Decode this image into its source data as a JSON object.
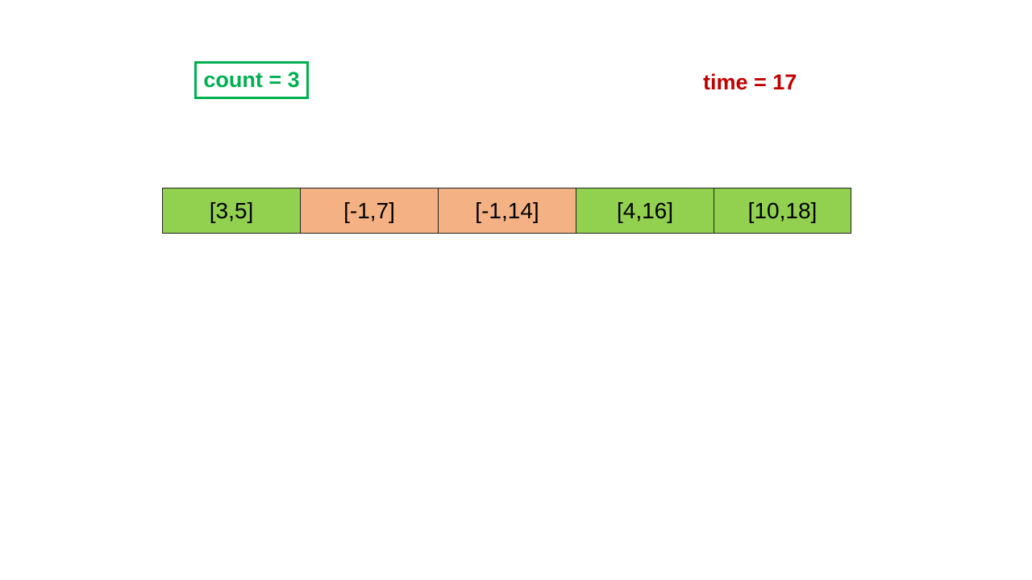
{
  "counter": {
    "label": "count = 3",
    "color": "#00b050"
  },
  "timer": {
    "label": "time = 17",
    "color": "#c00000"
  },
  "intervals": [
    {
      "text": "[3,5]",
      "state": "green",
      "color": "#92d050"
    },
    {
      "text": "[-1,7]",
      "state": "orange",
      "color": "#f4b183"
    },
    {
      "text": "[-1,14]",
      "state": "orange",
      "color": "#f4b183"
    },
    {
      "text": "[4,16]",
      "state": "green",
      "color": "#92d050"
    },
    {
      "text": "[10,18]",
      "state": "green",
      "color": "#92d050"
    }
  ]
}
